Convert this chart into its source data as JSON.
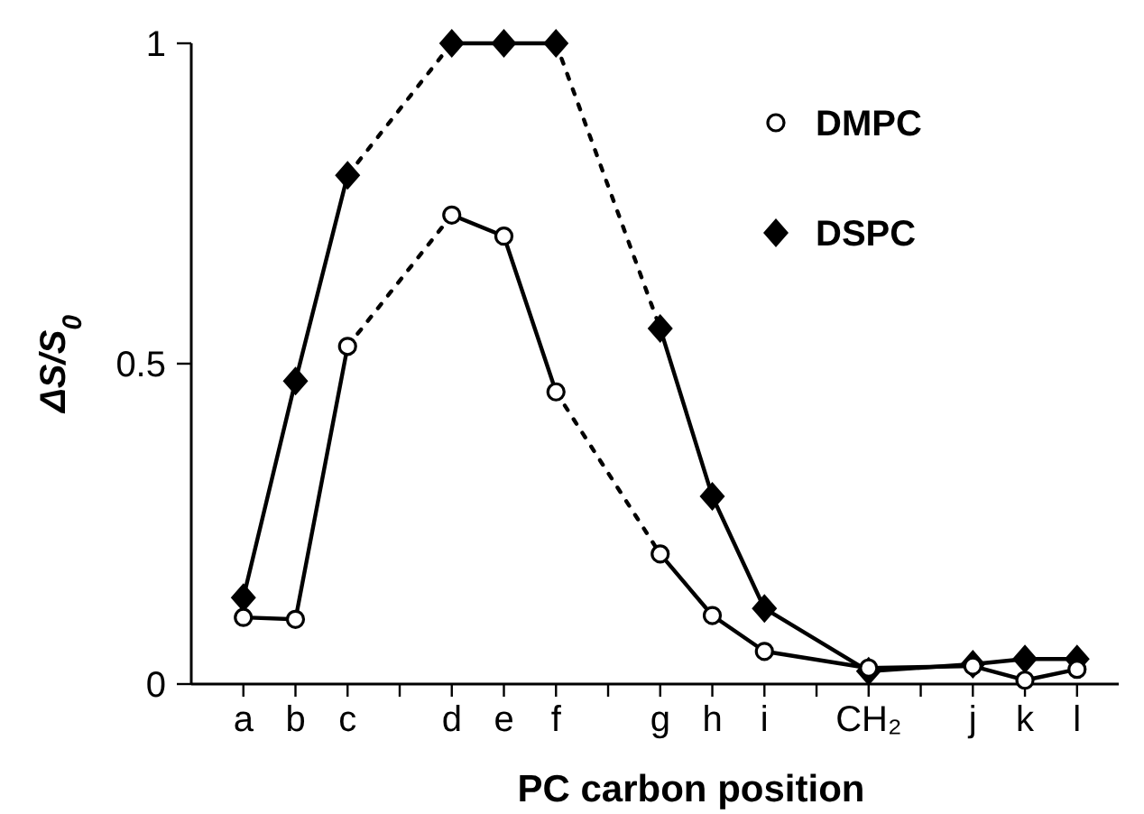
{
  "chart_data": {
    "type": "line",
    "xlabel": "PC carbon position",
    "ylabel": "ΔS/S$_{0}$",
    "categories": [
      "a",
      "b",
      "c",
      null,
      "d",
      "e",
      "f",
      null,
      "g",
      "h",
      "i",
      null,
      "CH₂",
      null,
      "j",
      "k",
      "l"
    ],
    "ylim": [
      0,
      1
    ],
    "yticks": [
      0,
      0.5,
      1
    ],
    "grid": false,
    "legend": "top right",
    "series": [
      {
        "color": "#000000",
        "marker": "none",
        "line_style": "dotted",
        "values": [
          null,
          null,
          0.527,
          null,
          0.732,
          null,
          null,
          null,
          null,
          null,
          null,
          null,
          null,
          null,
          null,
          null,
          null
        ]
      },
      {
        "color": "#000000",
        "marker": "none",
        "line_style": "dotted",
        "values": [
          null,
          null,
          null,
          null,
          null,
          null,
          0.456,
          null,
          0.203,
          null,
          null,
          null,
          null,
          null,
          null,
          null,
          null
        ]
      },
      {
        "color": "#000000",
        "marker": "none",
        "line_style": "dotted",
        "values": [
          null,
          null,
          0.794,
          null,
          1,
          null,
          null,
          null,
          null,
          null,
          null,
          null,
          null,
          null,
          null,
          null,
          null
        ]
      },
      {
        "color": "#000000",
        "marker": "none",
        "line_style": "dotted",
        "values": [
          null,
          null,
          null,
          null,
          null,
          null,
          1,
          null,
          0.555,
          null,
          null,
          null,
          null,
          null,
          null,
          null,
          null
        ]
      },
      {
        "color": "#000000",
        "marker": "none",
        "line_style": "solid",
        "values": [
          0.104,
          0.101,
          0.527,
          null,
          null,
          null,
          null,
          null,
          null,
          null,
          null,
          null,
          null,
          null,
          null,
          null,
          null
        ]
      },
      {
        "color": "#000000",
        "marker": "none",
        "line_style": "solid",
        "values": [
          null,
          null,
          null,
          null,
          0.732,
          0.699,
          0.456,
          null,
          null,
          null,
          null,
          null,
          null,
          null,
          null,
          null,
          null
        ]
      },
      {
        "color": "#000000",
        "marker": "none",
        "line_style": "solid",
        "values": [
          null,
          null,
          null,
          null,
          null,
          null,
          null,
          null,
          0.203,
          0.107,
          0.051,
          null,
          0.025,
          null,
          0.028,
          0.006,
          0.023
        ]
      },
      {
        "color": "#000000",
        "marker": "none",
        "line_style": "solid",
        "values": [
          0.135,
          0.473,
          0.794,
          null,
          null,
          null,
          null,
          null,
          null,
          null,
          null,
          null,
          null,
          null,
          null,
          null,
          null
        ]
      },
      {
        "color": "#000000",
        "marker": "none",
        "line_style": "solid",
        "values": [
          null,
          null,
          null,
          null,
          1,
          1,
          1,
          null,
          null,
          null,
          null,
          null,
          null,
          null,
          null,
          null,
          null
        ]
      },
      {
        "color": "#000000",
        "marker": "none",
        "line_style": "solid",
        "values": [
          null,
          null,
          null,
          null,
          null,
          null,
          null,
          null,
          0.555,
          0.293,
          0.118,
          null,
          0.02,
          null,
          0.031,
          0.039,
          0.039
        ]
      },
      {
        "type": "scatter",
        "name": "DSPC",
        "color": "#000000",
        "marker": "diamond",
        "values": [
          0.135,
          0.473,
          0.794,
          null,
          1,
          1,
          1,
          null,
          0.555,
          0.293,
          0.118,
          null,
          0.02,
          null,
          0.031,
          0.039,
          0.039
        ]
      },
      {
        "type": "scatter",
        "name": "DMPC",
        "color": "#000000",
        "marker": "circle",
        "values": [
          0.104,
          0.101,
          0.527,
          null,
          0.732,
          0.699,
          0.456,
          null,
          0.203,
          0.107,
          0.051,
          null,
          0.025,
          null,
          0.028,
          0.006,
          0.023
        ]
      }
    ]
  }
}
